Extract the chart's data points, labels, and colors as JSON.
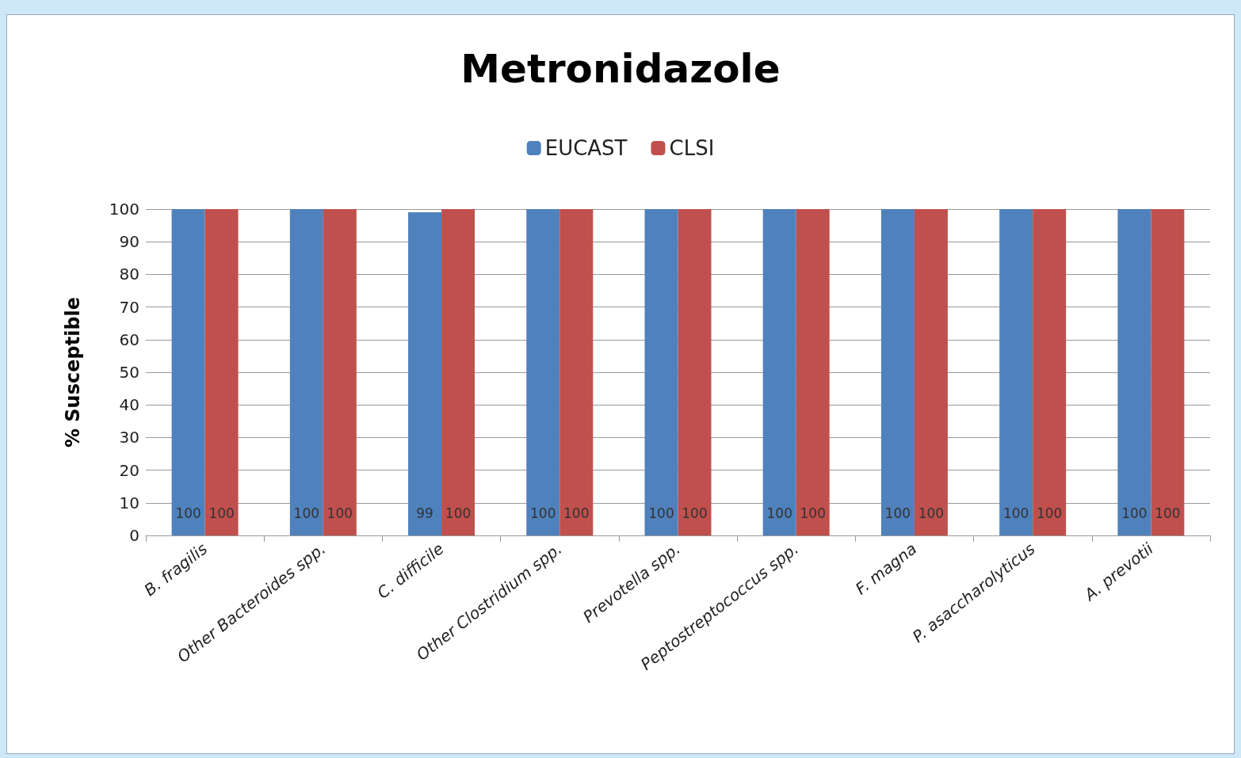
{
  "chart_data": {
    "type": "bar",
    "title": "Metronidazole",
    "ylabel": "% Susceptible",
    "categories": [
      "B. fragilis",
      "Other Bacteroides spp.",
      "C. difficile",
      "Other Clostridium spp.",
      "Prevotella spp.",
      "Peptostreptococcus spp.",
      "F. magna",
      "P. asaccharolyticus",
      "A. prevotii"
    ],
    "series": [
      {
        "name": "EUCAST",
        "color": "#4f81bd",
        "values": [
          100,
          100,
          99,
          100,
          100,
          100,
          100,
          100,
          100
        ]
      },
      {
        "name": "CLSI",
        "color": "#c0504d",
        "values": [
          100,
          100,
          100,
          100,
          100,
          100,
          100,
          100,
          100
        ]
      }
    ],
    "ylim": [
      0,
      100
    ],
    "yticks": [
      0,
      10,
      20,
      30,
      40,
      50,
      60,
      70,
      80,
      90,
      100
    ],
    "grid": "y",
    "legend": "top",
    "data_labels": true
  }
}
